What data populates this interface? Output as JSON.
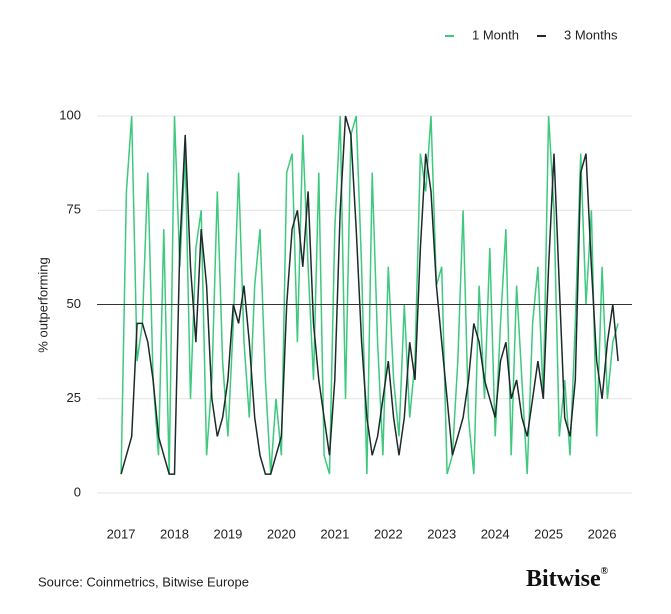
{
  "chart_data": {
    "type": "line",
    "y_label": "% outperforming",
    "source": "Source: Coinmetrics, Bitwise Europe",
    "brand": "Bitwise",
    "brand_mark": "®",
    "x": [
      2017.0,
      2017.1,
      2017.2,
      2017.3,
      2017.4,
      2017.5,
      2017.6,
      2017.7,
      2017.8,
      2017.9,
      2018.0,
      2018.1,
      2018.2,
      2018.3,
      2018.4,
      2018.5,
      2018.6,
      2018.7,
      2018.8,
      2018.9,
      2019.0,
      2019.1,
      2019.2,
      2019.3,
      2019.4,
      2019.5,
      2019.6,
      2019.7,
      2019.8,
      2019.9,
      2020.0,
      2020.1,
      2020.2,
      2020.3,
      2020.4,
      2020.5,
      2020.6,
      2020.7,
      2020.8,
      2020.9,
      2021.0,
      2021.1,
      2021.2,
      2021.3,
      2021.4,
      2021.5,
      2021.6,
      2021.7,
      2021.8,
      2021.9,
      2022.0,
      2022.1,
      2022.2,
      2022.3,
      2022.4,
      2022.5,
      2022.6,
      2022.7,
      2022.8,
      2022.9,
      2023.0,
      2023.1,
      2023.2,
      2023.3,
      2023.4,
      2023.5,
      2023.6,
      2023.7,
      2023.8,
      2023.9,
      2024.0,
      2024.1,
      2024.2,
      2024.3,
      2024.4,
      2024.5,
      2024.6,
      2024.7,
      2024.8,
      2024.9,
      2025.0,
      2025.1,
      2025.2,
      2025.3,
      2025.4,
      2025.5,
      2025.6,
      2025.7,
      2025.8,
      2025.9,
      2026.0,
      2026.1,
      2026.2,
      2026.3
    ],
    "series": [
      {
        "name": "1 Month",
        "color": "#3ec97f",
        "values": [
          5,
          80,
          100,
          35,
          45,
          85,
          30,
          10,
          70,
          5,
          100,
          60,
          90,
          25,
          65,
          75,
          10,
          30,
          80,
          35,
          15,
          45,
          85,
          40,
          20,
          55,
          70,
          30,
          5,
          25,
          10,
          85,
          90,
          40,
          95,
          60,
          30,
          85,
          10,
          5,
          70,
          100,
          25,
          95,
          100,
          60,
          5,
          85,
          40,
          10,
          60,
          30,
          15,
          50,
          20,
          35,
          90,
          80,
          100,
          55,
          60,
          5,
          10,
          35,
          75,
          20,
          5,
          55,
          25,
          65,
          15,
          45,
          70,
          10,
          55,
          30,
          5,
          45,
          60,
          25,
          100,
          75,
          15,
          30,
          10,
          45,
          90,
          50,
          75,
          15,
          60,
          25,
          40,
          45
        ]
      },
      {
        "name": "3 Months",
        "color": "#1e2a2a",
        "values": [
          5,
          10,
          15,
          45,
          45,
          40,
          30,
          15,
          10,
          5,
          5,
          65,
          95,
          60,
          40,
          70,
          55,
          25,
          15,
          20,
          30,
          50,
          45,
          55,
          40,
          20,
          10,
          5,
          5,
          10,
          15,
          50,
          70,
          75,
          60,
          80,
          45,
          30,
          20,
          10,
          30,
          75,
          100,
          95,
          70,
          40,
          20,
          10,
          15,
          25,
          35,
          20,
          10,
          20,
          40,
          30,
          65,
          90,
          80,
          55,
          40,
          25,
          10,
          15,
          20,
          30,
          45,
          40,
          30,
          25,
          20,
          35,
          40,
          25,
          30,
          20,
          15,
          25,
          35,
          25,
          60,
          90,
          55,
          20,
          15,
          30,
          85,
          90,
          60,
          35,
          25,
          40,
          50,
          35
        ]
      }
    ],
    "xlim": [
      2016.55,
      2026.56
    ],
    "xticks": [
      2017,
      2018,
      2019,
      2020,
      2021,
      2022,
      2023,
      2024,
      2025,
      2026
    ],
    "ylim": [
      0,
      100
    ],
    "yticks": [
      0,
      25,
      50,
      75,
      100
    ],
    "hline": 50,
    "grid": true,
    "legend": "top-right"
  }
}
